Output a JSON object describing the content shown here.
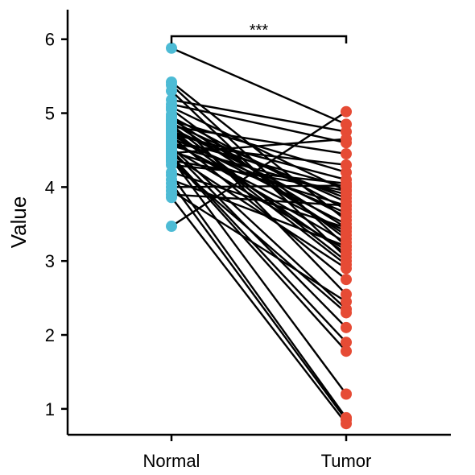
{
  "chart_data": {
    "type": "scatter",
    "subtype": "paired-dot-plot",
    "title": "",
    "xlabel": "",
    "ylabel": "Value",
    "categories": [
      "Normal",
      "Tumor"
    ],
    "ylim": [
      0.65,
      6.4
    ],
    "yticks": [
      1,
      2,
      3,
      4,
      5,
      6
    ],
    "grid": false,
    "legend": "none",
    "colors": {
      "Normal": "#4dbbd5",
      "Tumor": "#e64b35",
      "lines": "#000000"
    },
    "significance": {
      "label": "***",
      "from": "Normal",
      "to": "Tumor"
    },
    "pairs": [
      [
        5.88,
        4.85
      ],
      [
        5.42,
        3.55
      ],
      [
        5.38,
        3.2
      ],
      [
        5.3,
        3.05
      ],
      [
        5.18,
        4.75
      ],
      [
        5.12,
        4.6
      ],
      [
        5.08,
        3.95
      ],
      [
        5.05,
        3.3
      ],
      [
        4.98,
        2.55
      ],
      [
        4.95,
        3.7
      ],
      [
        4.92,
        3.45
      ],
      [
        4.9,
        4.2
      ],
      [
        4.88,
        3.35
      ],
      [
        4.86,
        3.8
      ],
      [
        4.84,
        3.0
      ],
      [
        4.82,
        4.45
      ],
      [
        4.8,
        3.6
      ],
      [
        4.78,
        2.95
      ],
      [
        4.76,
        3.85
      ],
      [
        4.74,
        3.1
      ],
      [
        4.72,
        4.1
      ],
      [
        4.7,
        3.5
      ],
      [
        4.68,
        2.75
      ],
      [
        4.66,
        3.65
      ],
      [
        4.64,
        4.0
      ],
      [
        4.62,
        3.25
      ],
      [
        4.6,
        3.4
      ],
      [
        4.58,
        4.3
      ],
      [
        4.56,
        3.9
      ],
      [
        4.54,
        2.35
      ],
      [
        4.52,
        3.15
      ],
      [
        4.5,
        2.1
      ],
      [
        4.48,
        3.75
      ],
      [
        4.46,
        4.65
      ],
      [
        4.44,
        2.9
      ],
      [
        4.42,
        1.9
      ],
      [
        4.4,
        1.78
      ],
      [
        4.38,
        1.2
      ],
      [
        4.36,
        3.95
      ],
      [
        4.34,
        2.3
      ],
      [
        4.3,
        4.05
      ],
      [
        4.2,
        3.45
      ],
      [
        4.16,
        0.88
      ],
      [
        4.1,
        3.2
      ],
      [
        4.05,
        0.85
      ],
      [
        4.0,
        4.02
      ],
      [
        3.95,
        2.45
      ],
      [
        3.9,
        3.75
      ],
      [
        3.86,
        0.8
      ],
      [
        3.47,
        5.02
      ]
    ]
  }
}
